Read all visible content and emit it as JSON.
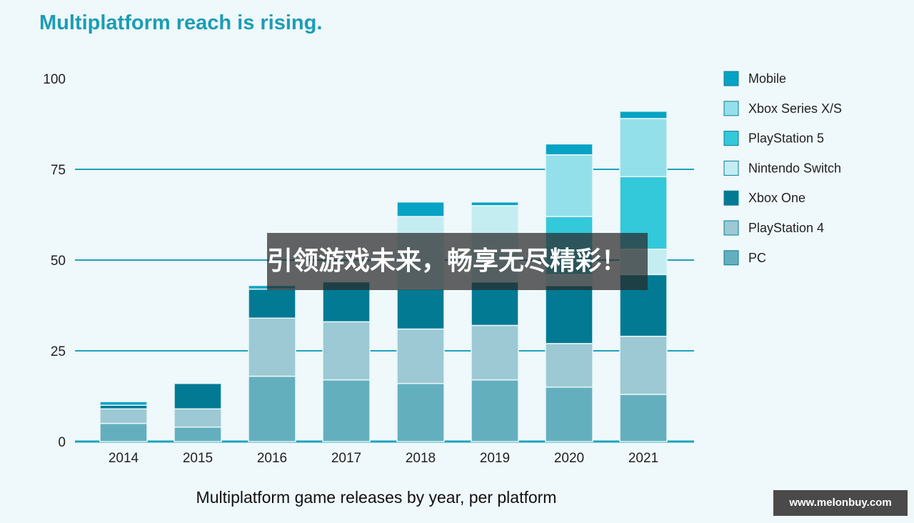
{
  "title": "Multiplatform reach is rising.",
  "banner_text": "引领游戏未来，畅享无尽精彩！",
  "watermark": "www.melonbuy.com",
  "chart_data": {
    "type": "bar",
    "stacked": true,
    "title": "Multiplatform reach is rising.",
    "xlabel": "Multiplatform game releases by year, per platform",
    "ylabel": "",
    "ylim": [
      0,
      100
    ],
    "yticks": [
      0,
      25,
      50,
      75,
      100
    ],
    "grid": true,
    "legend": "right",
    "categories": [
      "2014",
      "2015",
      "2016",
      "2017",
      "2018",
      "2019",
      "2020",
      "2021"
    ],
    "series": [
      {
        "name": "PC",
        "color": "#64afbe",
        "values": [
          5,
          4,
          18,
          17,
          16,
          17,
          15,
          13
        ]
      },
      {
        "name": "PlayStation 4",
        "color": "#9cc9d3",
        "values": [
          4,
          5,
          16,
          16,
          15,
          15,
          12,
          16
        ]
      },
      {
        "name": "Xbox One",
        "color": "#027a93",
        "values": [
          1,
          7,
          8,
          11,
          11,
          12,
          16,
          17
        ]
      },
      {
        "name": "Nintendo Switch",
        "color": "#c4edf2",
        "values": [
          0,
          0,
          0,
          0,
          20,
          21,
          3,
          7
        ]
      },
      {
        "name": "PlayStation 5",
        "color": "#33c8da",
        "values": [
          0,
          0,
          0,
          0,
          0,
          0,
          16,
          20
        ]
      },
      {
        "name": "Xbox Series X/S",
        "color": "#93e0ea",
        "values": [
          0,
          0,
          0,
          0,
          0,
          0,
          17,
          16
        ]
      },
      {
        "name": "Mobile",
        "color": "#06a3c4",
        "values": [
          1,
          0,
          1,
          0,
          4,
          1,
          3,
          2
        ]
      }
    ]
  }
}
